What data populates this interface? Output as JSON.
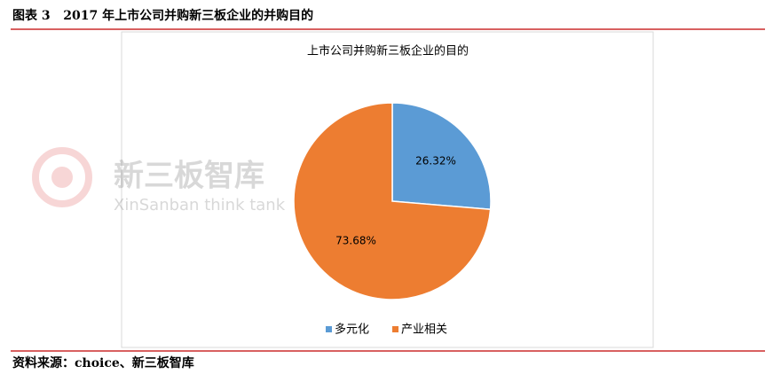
{
  "caption": "图表 3   2017 年上市公司并购新三板企业的并购目的",
  "source": "资料来源：choice、新三板智库",
  "watermark": {
    "name": "新三板智库",
    "english": "XinSanban think tank"
  },
  "chart_data": {
    "type": "pie",
    "title": "上市公司并购新三板企业的目的",
    "categories": [
      "多元化",
      "产业相关"
    ],
    "values": [
      26.32,
      73.68
    ],
    "value_labels": [
      "26.32%",
      "73.68%"
    ],
    "colors": [
      "#5b9bd5",
      "#ed7d31"
    ],
    "legend": "bottom"
  }
}
